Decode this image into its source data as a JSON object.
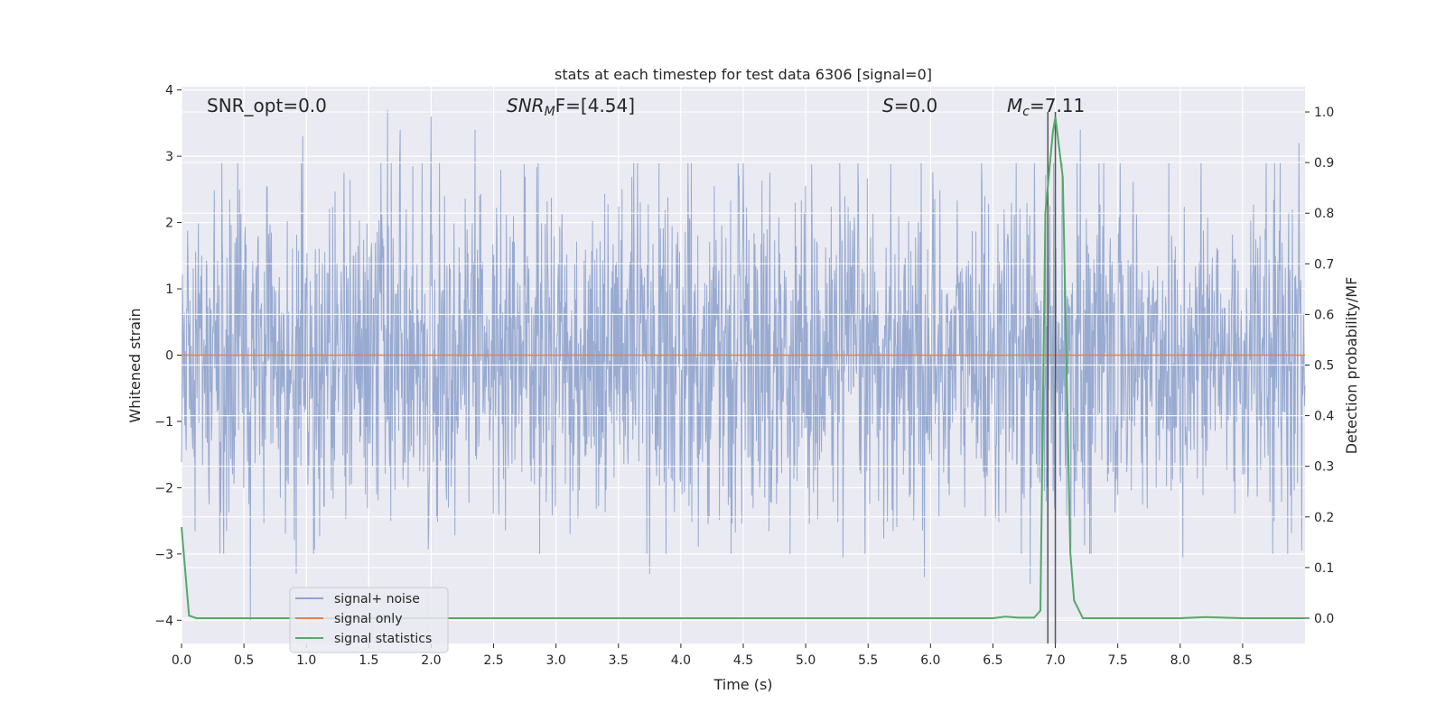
{
  "chart_data": {
    "type": "line",
    "title": "stats at each timestep for test data 6306 [signal=0]",
    "xlabel": "Time (s)",
    "ylabel": "Whitened strain",
    "ylabel_right": "Detection probability/MF",
    "xlim": [
      0,
      9.0
    ],
    "ylim": [
      -4.35,
      4.05
    ],
    "ylim_right": [
      -0.05,
      1.05
    ],
    "xticks": [
      0.0,
      0.5,
      1.0,
      1.5,
      2.0,
      2.5,
      3.0,
      3.5,
      4.0,
      4.5,
      5.0,
      5.5,
      6.0,
      6.5,
      7.0,
      7.5,
      8.0,
      8.5
    ],
    "xtick_labels": [
      "0.0",
      "0.5",
      "1.0",
      "1.5",
      "2.0",
      "2.5",
      "3.0",
      "3.5",
      "4.0",
      "4.5",
      "5.0",
      "5.5",
      "6.0",
      "6.5",
      "7.0",
      "7.5",
      "8.0",
      "8.5"
    ],
    "yticks": [
      -4,
      -3,
      -2,
      -1,
      0,
      1,
      2,
      3,
      4
    ],
    "ytick_labels": [
      "−4",
      "−3",
      "−2",
      "−1",
      "0",
      "1",
      "2",
      "3",
      "4"
    ],
    "yticks_right": [
      0.0,
      0.1,
      0.2,
      0.3,
      0.4,
      0.5,
      0.6,
      0.7,
      0.8,
      0.9,
      1.0
    ],
    "ytick_labels_right": [
      "0.0",
      "0.1",
      "0.2",
      "0.3",
      "0.4",
      "0.5",
      "0.6",
      "0.7",
      "0.8",
      "0.9",
      "1.0"
    ],
    "grid": true,
    "legend_position": "bottom-left",
    "series": [
      {
        "name": "signal+ noise",
        "axis": "left",
        "color": "#8fa3cc",
        "description_hint": "dense whitened noise, roughly within -4 to 3.7",
        "peaks": [
          {
            "x": 1.65,
            "y": 3.7
          },
          {
            "x": 2.0,
            "y": 3.6
          },
          {
            "x": 1.75,
            "y": 3.4
          },
          {
            "x": 2.35,
            "y": 3.4
          },
          {
            "x": 0.97,
            "y": 3.3
          },
          {
            "x": 7.2,
            "y": 3.4
          },
          {
            "x": 8.95,
            "y": 3.2
          },
          {
            "x": 4.5,
            "y": 2.9
          },
          {
            "x": 0.55,
            "y": -4.0
          },
          {
            "x": 5.95,
            "y": -3.35
          },
          {
            "x": 6.8,
            "y": -3.45
          },
          {
            "x": 3.75,
            "y": -3.3
          },
          {
            "x": 0.92,
            "y": -3.3
          },
          {
            "x": 5.3,
            "y": -3.05
          },
          {
            "x": 8.02,
            "y": -3.05
          }
        ]
      },
      {
        "name": "signal only",
        "axis": "left",
        "color": "#dd8452",
        "x": [
          0,
          9.0
        ],
        "y": [
          0,
          0
        ]
      },
      {
        "name": "signal statistics",
        "axis": "right",
        "color": "#55a868",
        "x": [
          0.0,
          0.06,
          0.12,
          0.2,
          1.0,
          3.0,
          5.0,
          6.5,
          6.6,
          6.7,
          6.83,
          6.88,
          6.92,
          6.98,
          7.0,
          7.06,
          7.12,
          7.15,
          7.22,
          8.0,
          8.2,
          8.5,
          9.0
        ],
        "y": [
          0.18,
          0.005,
          0.0,
          0.0,
          0.0,
          0.0,
          0.0,
          0.0,
          0.003,
          0.001,
          0.001,
          0.015,
          0.8,
          0.96,
          0.99,
          0.87,
          0.13,
          0.035,
          0.0,
          0.0,
          0.002,
          0.0,
          0.0
        ]
      }
    ],
    "vlines": [
      6.94,
      7.0
    ],
    "annotations": [
      {
        "text": "SNR_opt=0.0",
        "x": 0.2
      },
      {
        "text_parts": [
          "SNR",
          "M",
          "F=[4.54]"
        ],
        "x": 2.6
      },
      {
        "text_parts": [
          "S",
          "=0.0"
        ],
        "x": 5.6
      },
      {
        "text_parts": [
          "M",
          "c",
          "=7.11"
        ],
        "x": 6.6
      }
    ],
    "legend": [
      "signal+ noise",
      "signal only",
      "signal statistics"
    ]
  }
}
